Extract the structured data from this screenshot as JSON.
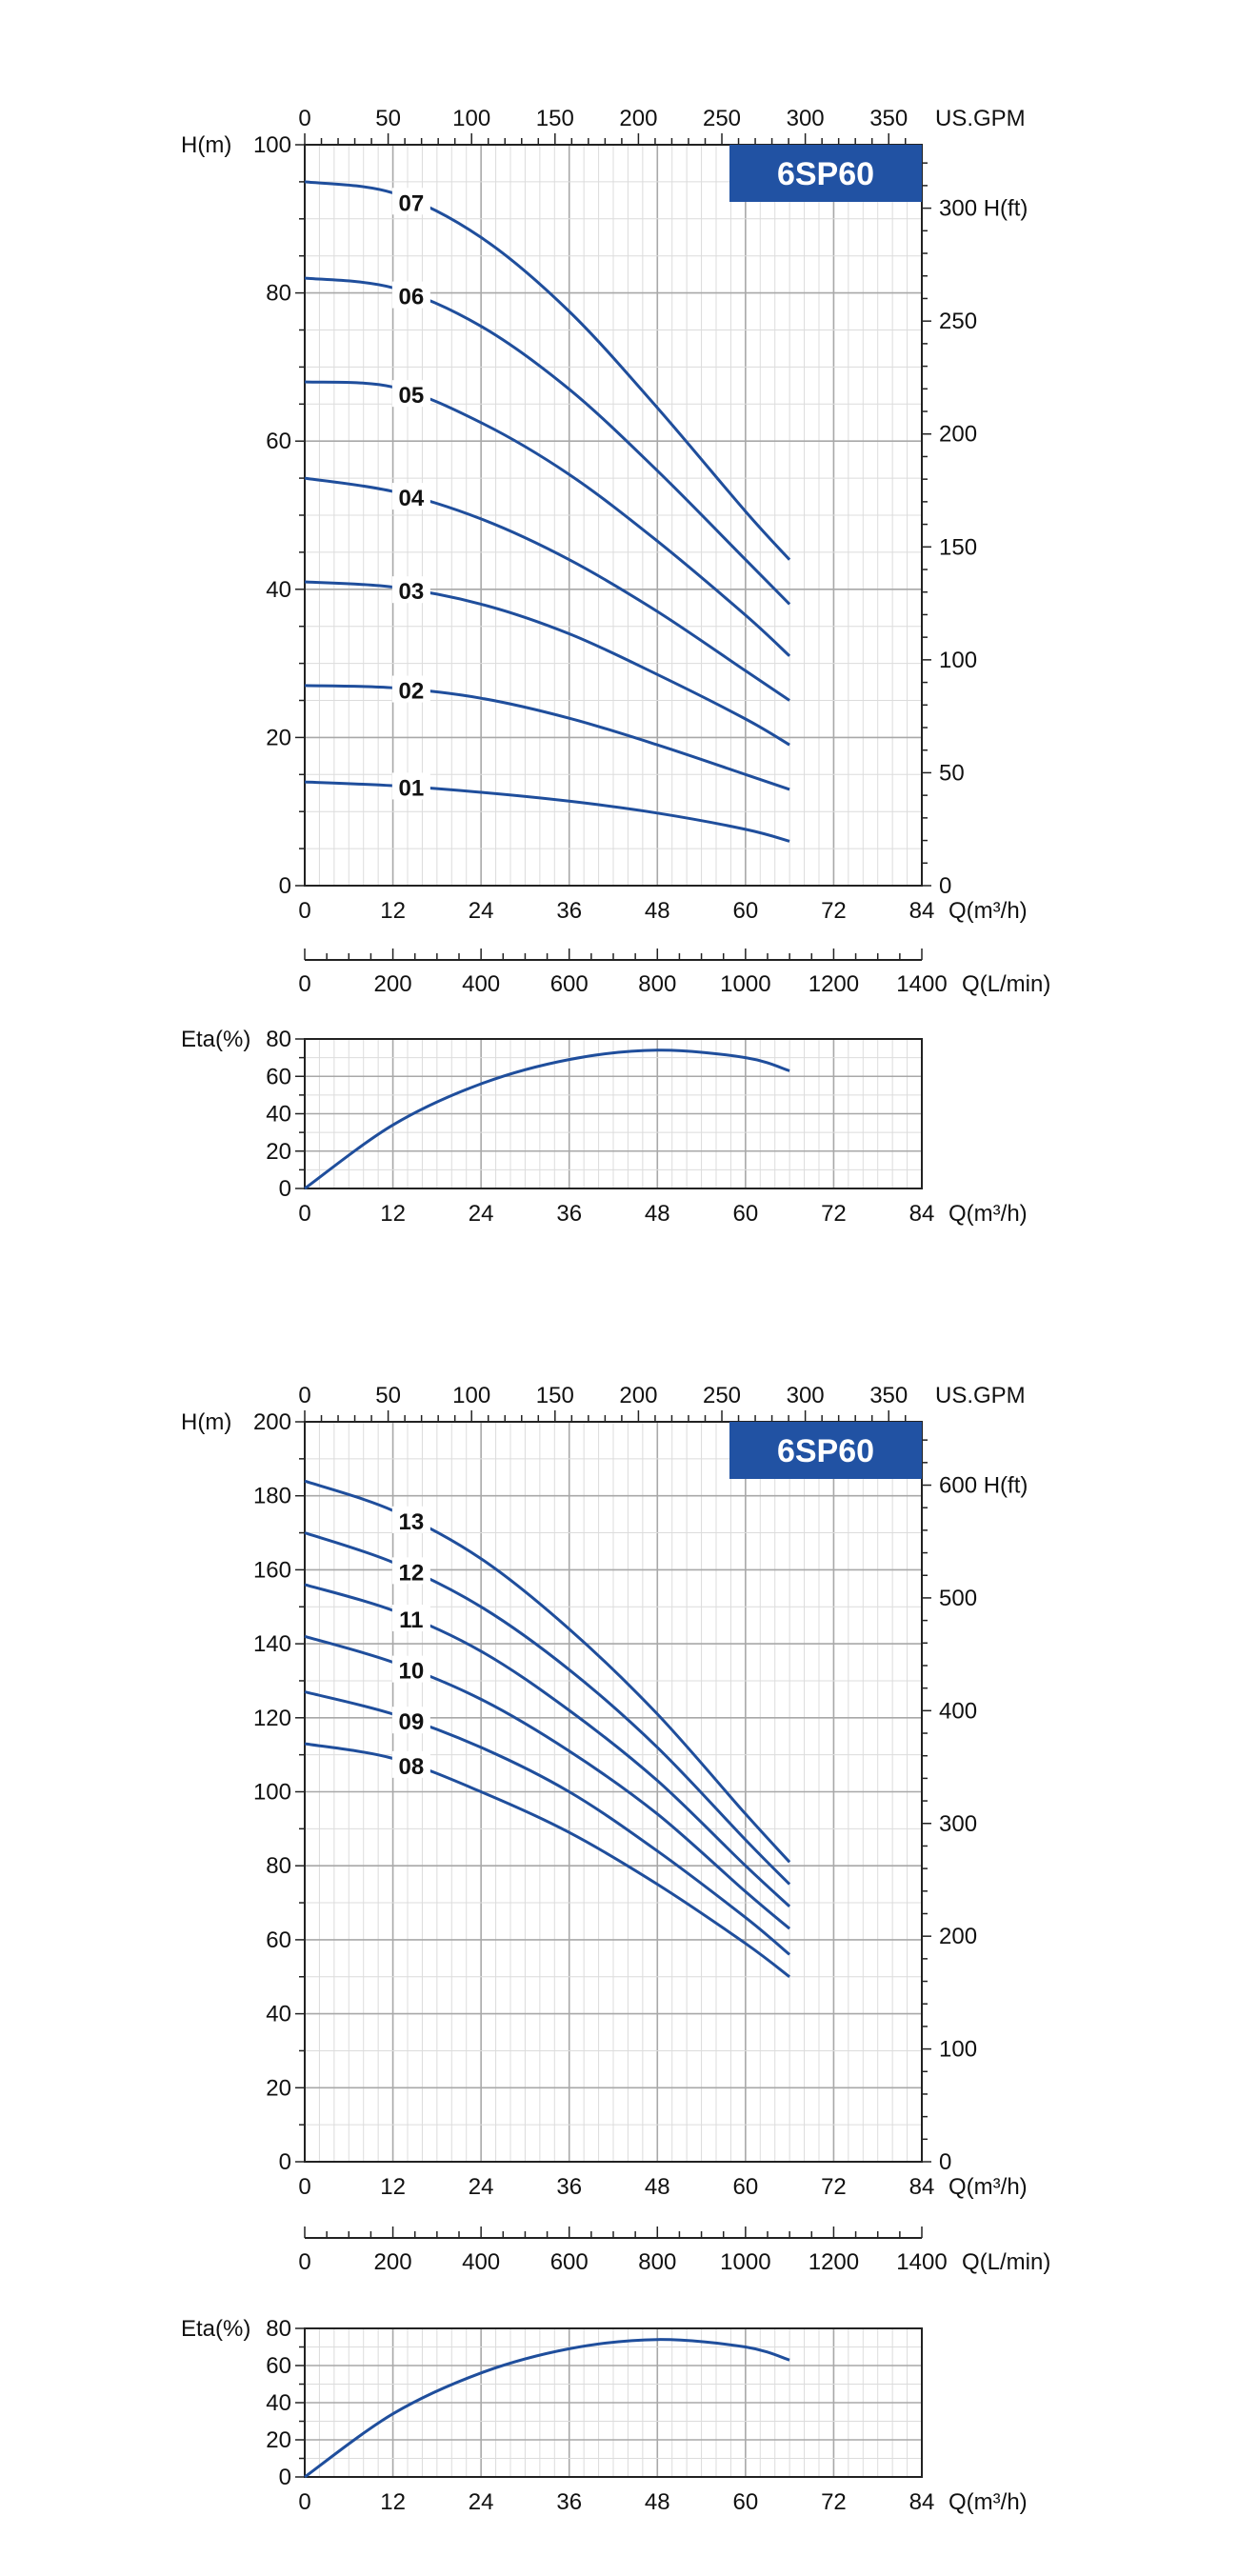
{
  "colors": {
    "curve": "#1f4e9c",
    "badge_bg": "#2152a3",
    "badge_text": "#ffffff",
    "grid_major": "#a8a8a8",
    "grid_minor": "#dcdcdc",
    "axis": "#222222",
    "text": "#111111"
  },
  "panels": [
    {
      "badge": "6SP60",
      "head_chart": {
        "type": "line",
        "ylabel_left": "H(m)",
        "ylabel_right": "H(ft)",
        "xlabel_bottom": "Q(m³/h)",
        "xlabel_top": "US.GPM",
        "xlim": [
          0,
          84
        ],
        "ylim": [
          0,
          100
        ],
        "y_ticks_left": [
          "0",
          "20",
          "40",
          "60",
          "80",
          "100"
        ],
        "x_ticks_bottom": [
          "0",
          "12",
          "24",
          "36",
          "48",
          "60",
          "72",
          "84"
        ],
        "x_ticks_top": [
          "0",
          "50",
          "100",
          "150",
          "200",
          "250",
          "300",
          "350"
        ],
        "y_ticks_right": [
          "0",
          "50",
          "100",
          "150",
          "200",
          "250",
          "300 H(ft)"
        ],
        "grid": true,
        "series": [
          {
            "name": "01",
            "x": [
              0,
              12,
              24,
              36,
              48,
              60,
              66
            ],
            "y": [
              14.0,
              13.5,
              12.6,
              11.4,
              9.8,
              7.6,
              6.0
            ]
          },
          {
            "name": "02",
            "x": [
              0,
              12,
              24,
              36,
              48,
              60,
              66
            ],
            "y": [
              27.0,
              26.7,
              25.3,
              22.6,
              19.0,
              15.0,
              13.0
            ]
          },
          {
            "name": "03",
            "x": [
              0,
              12,
              24,
              36,
              48,
              60,
              66
            ],
            "y": [
              41.0,
              40.3,
              38.0,
              34.0,
              28.5,
              22.5,
              19.0
            ]
          },
          {
            "name": "04",
            "x": [
              0,
              12,
              24,
              36,
              48,
              60,
              66
            ],
            "y": [
              55.0,
              53.2,
              49.5,
              44.0,
              37.0,
              29.0,
              25.0
            ]
          },
          {
            "name": "05",
            "x": [
              0,
              12,
              24,
              36,
              48,
              60,
              66
            ],
            "y": [
              68.0,
              67.3,
              62.5,
              55.5,
              46.5,
              36.5,
              31.0
            ]
          },
          {
            "name": "06",
            "x": [
              0,
              12,
              24,
              36,
              48,
              60,
              66
            ],
            "y": [
              82.0,
              80.7,
              75.5,
              67.0,
              56.0,
              44.0,
              38.0
            ]
          },
          {
            "name": "07",
            "x": [
              0,
              12,
              24,
              36,
              48,
              60,
              66
            ],
            "y": [
              95.0,
              93.5,
              87.5,
              77.5,
              64.5,
              50.5,
              44.0
            ]
          }
        ]
      },
      "flow_axis": {
        "label": "Q(L/min)",
        "ticks": [
          "0",
          "200",
          "400",
          "600",
          "800",
          "1000",
          "1200",
          "1400"
        ]
      },
      "eta_chart": {
        "type": "line",
        "ylabel": "Eta(%)",
        "xlabel": "Q(m³/h)",
        "xlim": [
          0,
          84
        ],
        "ylim": [
          0,
          80
        ],
        "y_ticks": [
          "0",
          "20",
          "40",
          "60",
          "80"
        ],
        "x_ticks": [
          "0",
          "12",
          "24",
          "36",
          "48",
          "60",
          "72",
          "84"
        ],
        "grid": true,
        "series": [
          {
            "x": [
              0,
              12,
              24,
              36,
              48,
              60,
              66
            ],
            "y": [
              0,
              34,
              56,
              69,
              74,
              70,
              63
            ]
          }
        ]
      }
    },
    {
      "badge": "6SP60",
      "head_chart": {
        "type": "line",
        "ylabel_left": "H(m)",
        "ylabel_right": "H(ft)",
        "xlabel_bottom": "Q(m³/h)",
        "xlabel_top": "US.GPM",
        "xlim": [
          0,
          84
        ],
        "ylim": [
          0,
          200
        ],
        "y_ticks_left": [
          "0",
          "20",
          "40",
          "60",
          "80",
          "100",
          "120",
          "140",
          "160",
          "180",
          "200"
        ],
        "x_ticks_bottom": [
          "0",
          "12",
          "24",
          "36",
          "48",
          "60",
          "72",
          "84"
        ],
        "x_ticks_top": [
          "0",
          "50",
          "100",
          "150",
          "200",
          "250",
          "300",
          "350"
        ],
        "y_ticks_right": [
          "0",
          "100",
          "200",
          "300",
          "400",
          "500",
          "600 H(ft)"
        ],
        "grid": true,
        "series": [
          {
            "name": "08",
            "x": [
              0,
              12,
              24,
              36,
              48,
              60,
              66
            ],
            "y": [
              113,
              109,
              100,
              89,
              75,
              59,
              50
            ]
          },
          {
            "name": "09",
            "x": [
              0,
              12,
              24,
              36,
              48,
              60,
              66
            ],
            "y": [
              127,
              121,
              112,
              100,
              84,
              66,
              56
            ]
          },
          {
            "name": "10",
            "x": [
              0,
              12,
              24,
              36,
              48,
              60,
              66
            ],
            "y": [
              142,
              135,
              125,
              111,
              94,
              73,
              63
            ]
          },
          {
            "name": "11",
            "x": [
              0,
              12,
              24,
              36,
              48,
              60,
              66
            ],
            "y": [
              156,
              149,
              138,
              122,
              103,
              80,
              69
            ]
          },
          {
            "name": "12",
            "x": [
              0,
              12,
              24,
              36,
              48,
              60,
              66
            ],
            "y": [
              170,
              162,
              150,
              133,
              112,
              87,
              75
            ]
          },
          {
            "name": "13",
            "x": [
              0,
              12,
              24,
              36,
              48,
              60,
              66
            ],
            "y": [
              184,
              176,
              163,
              144,
              121,
              94,
              81
            ]
          }
        ]
      },
      "flow_axis": {
        "label": "Q(L/min)",
        "ticks": [
          "0",
          "200",
          "400",
          "600",
          "800",
          "1000",
          "1200",
          "1400"
        ]
      },
      "eta_chart": {
        "type": "line",
        "ylabel": "Eta(%)",
        "xlabel": "Q(m³/h)",
        "xlim": [
          0,
          84
        ],
        "ylim": [
          0,
          80
        ],
        "y_ticks": [
          "0",
          "20",
          "40",
          "60",
          "80"
        ],
        "x_ticks": [
          "0",
          "12",
          "24",
          "36",
          "48",
          "60",
          "72",
          "84"
        ],
        "grid": true,
        "series": [
          {
            "x": [
              0,
              12,
              24,
              36,
              48,
              60,
              66
            ],
            "y": [
              0,
              34,
              56,
              69,
              74,
              70,
              63
            ]
          }
        ]
      }
    }
  ]
}
